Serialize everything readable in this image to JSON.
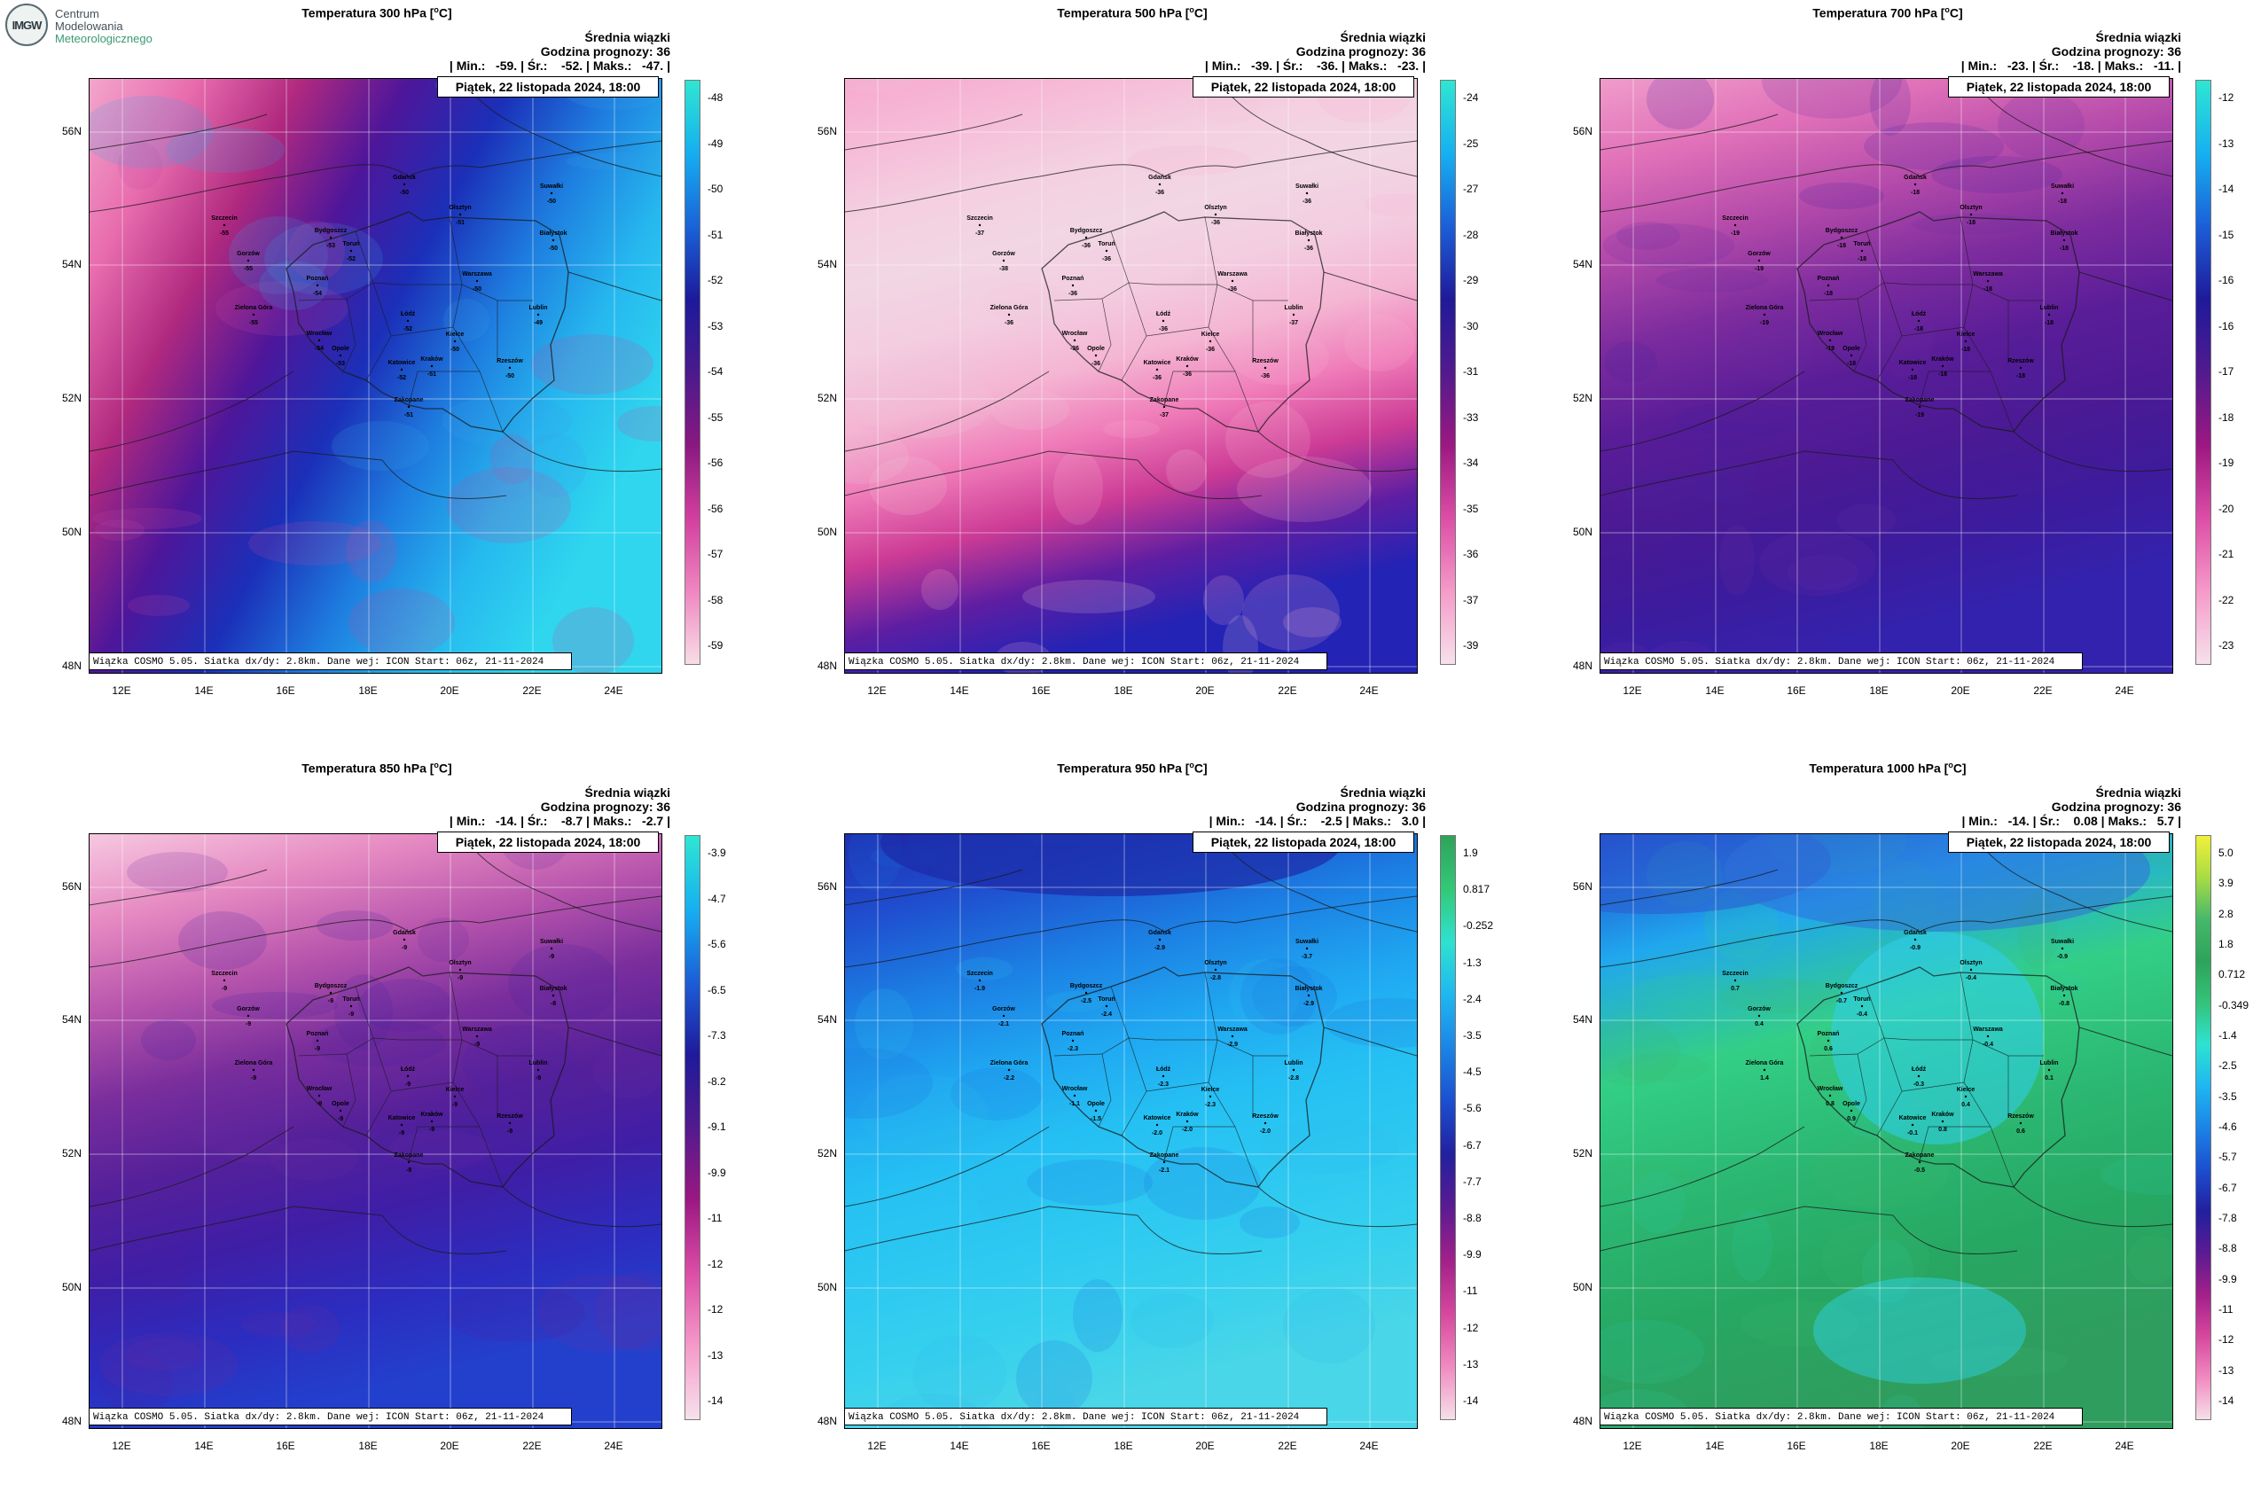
{
  "logo": {
    "line1": "Centrum",
    "line2": "Modelowania",
    "line3": "Meteorologicznego",
    "mark": "IMGW"
  },
  "lat_labels": [
    "56N",
    "54N",
    "52N",
    "50N",
    "48N"
  ],
  "lon_labels": [
    "12E",
    "14E",
    "16E",
    "18E",
    "20E",
    "22E",
    "24E"
  ],
  "common": {
    "header_line1": "Średnia wiązki",
    "header_line2": "Godzina prognozy: 36",
    "date": "Piątek, 22 listopada 2024, 18:00",
    "footer": "Wiązka COSMO 5.05. Siatka dx/dy: 2.8km. Dane wej: ICON Start: 06z, 21-11-2024"
  },
  "cities": [
    {
      "name": "Gdańsk"
    },
    {
      "name": "Olsztyn"
    },
    {
      "name": "Suwałki"
    },
    {
      "name": "Szczecin"
    },
    {
      "name": "Bydgoszcz"
    },
    {
      "name": "Toruń"
    },
    {
      "name": "Białystok"
    },
    {
      "name": "Gorzów"
    },
    {
      "name": "Poznań"
    },
    {
      "name": "Warszawa"
    },
    {
      "name": "Zielona Góra"
    },
    {
      "name": "Łódź"
    },
    {
      "name": "Lublin"
    },
    {
      "name": "Wrocław"
    },
    {
      "name": "Kielce"
    },
    {
      "name": "Opole"
    },
    {
      "name": "Katowice"
    },
    {
      "name": "Kraków"
    },
    {
      "name": "Rzeszów"
    },
    {
      "name": "Zakopane"
    }
  ],
  "panels": [
    {
      "title": "Temperatura 300 hPa [",
      "title_unit": "C]",
      "stats": "| Min.:   -59. | Śr.:    -52. | Maks.:   -47. |",
      "colorbar": [
        "-48",
        "-49",
        "-50",
        "-51",
        "-52",
        "-53",
        "-54",
        "-55",
        "-56",
        "-56",
        "-57",
        "-58",
        "-59"
      ],
      "colors": [
        "#2fe6d2",
        "#15aef0",
        "#1a63d8",
        "#1c1a9a",
        "#4a1a8e",
        "#8a1880",
        "#d23f9e",
        "#ef86c0",
        "#f8dde6"
      ],
      "city_values": [
        "-50",
        "-51",
        "-50",
        "-55",
        "-53",
        "-52",
        "-50",
        "-55",
        "-54",
        "-50",
        "-55",
        "-52",
        "-49",
        "-54",
        "-50",
        "-53",
        "-52",
        "-51",
        "-50",
        "-51"
      ],
      "map": {
        "type": "gradient_diag",
        "stops": [
          "#f3a6cc",
          "#e86cae",
          "#b0297f",
          "#4e169a",
          "#1b2fb8",
          "#1e7ddf",
          "#26b8ef",
          "#2fd6ee"
        ]
      }
    },
    {
      "title": "Temperatura 500 hPa [",
      "title_unit": "C]",
      "stats": "| Min.:   -39. | Śr.:    -36. | Maks.:   -23. |",
      "colorbar": [
        "-24",
        "-25",
        "-27",
        "-28",
        "-29",
        "-30",
        "-31",
        "-33",
        "-34",
        "-35",
        "-36",
        "-37",
        "-39"
      ],
      "colors": [
        "#2fe6d2",
        "#16b0f0",
        "#1c5ed8",
        "#1f1a9a",
        "#521a8e",
        "#9c1882",
        "#dc4ea6",
        "#f59ac9",
        "#f6e1eb"
      ],
      "city_values": [
        "-36",
        "-36",
        "-36",
        "-37",
        "-36",
        "-36",
        "-36",
        "-38",
        "-36",
        "-36",
        "-36",
        "-36",
        "-37",
        "-36",
        "-36",
        "-36",
        "-36",
        "-36",
        "-36",
        "-37"
      ],
      "map": {
        "type": "pale_pink",
        "stops": [
          "#f7a9cf",
          "#f6bbd8",
          "#f4cfe0",
          "#f2d6e3",
          "#f3cde0",
          "#f4b5d3",
          "#ef7ab8",
          "#cc3b95",
          "#5e1ea2",
          "#2323b5"
        ]
      }
    },
    {
      "title": "Temperatura 700 hPa [",
      "title_unit": "C]",
      "stats": "| Min.:   -23. | Śr.:    -18. | Maks.:   -11. |",
      "colorbar": [
        "-12",
        "-13",
        "-14",
        "-15",
        "-16",
        "-16",
        "-17",
        "-18",
        "-19",
        "-20",
        "-21",
        "-22",
        "-23"
      ],
      "colors": [
        "#2fe6d2",
        "#16b0f0",
        "#1c5ed8",
        "#1f1a9a",
        "#521a8e",
        "#9c1882",
        "#dc4ea6",
        "#f59ac9",
        "#f6e1eb"
      ],
      "city_values": [
        "-18",
        "-18",
        "-18",
        "-19",
        "-18",
        "-18",
        "-18",
        "-19",
        "-18",
        "-18",
        "-19",
        "-18",
        "-18",
        "-19",
        "-18",
        "-18",
        "-18",
        "-18",
        "-18",
        "-19"
      ],
      "map": {
        "type": "purple_top",
        "stops": [
          "#f09ccb",
          "#e070b8",
          "#b44aaa",
          "#7d2c9e",
          "#5a1d98",
          "#4b1a94",
          "#3d1b9c",
          "#3322ad"
        ]
      }
    },
    {
      "title": "Temperatura 850 hPa [",
      "title_unit": "C]",
      "stats": "| Min.:   -14. | Śr.:    -8.7 | Maks.:   -2.7 |",
      "colorbar": [
        "-3.9",
        "-4.7",
        "-5.6",
        "-6.5",
        "-7.3",
        "-8.2",
        "-9.1",
        "-9.9",
        "-11",
        "-12",
        "-12",
        "-13",
        "-14"
      ],
      "colors": [
        "#2fe6d2",
        "#16b0f0",
        "#1c5ed8",
        "#1f1a9a",
        "#521a8e",
        "#9c1882",
        "#dc4ea6",
        "#f59ac9",
        "#f6e1eb"
      ],
      "city_values": [
        "-9",
        "-9",
        "-9",
        "-9",
        "-9",
        "-9",
        "-8",
        "-9",
        "-9",
        "-9",
        "-9",
        "-9",
        "-9",
        "-9",
        "-9",
        "-9",
        "-9",
        "-9",
        "-9",
        "-9"
      ],
      "map": {
        "type": "purple_top",
        "stops": [
          "#f6c8e0",
          "#e68ac2",
          "#b855ad",
          "#7a2e9c",
          "#55209a",
          "#3f1ea6",
          "#2c2cbf",
          "#2340cd"
        ]
      }
    },
    {
      "title": "Temperatura 950 hPa [",
      "title_unit": "C]",
      "stats": "| Min.:   -14. | Śr.:    -2.5 | Maks.:   3.0 |",
      "colorbar": [
        "1.9",
        "0.817",
        "-0.252",
        "-1.3",
        "-2.4",
        "-3.5",
        "-4.5",
        "-5.6",
        "-6.7",
        "-7.7",
        "-8.8",
        "-9.9",
        "-11",
        "-12",
        "-13",
        "-14"
      ],
      "colors": [
        "#2ea35a",
        "#33c877",
        "#2ee2d0",
        "#1fb7f0",
        "#1c84e6",
        "#1c4fd0",
        "#22209f",
        "#5a1b92",
        "#a2208a",
        "#d6479e",
        "#f08ac0",
        "#f6dfe9"
      ],
      "city_values": [
        "-2.9",
        "-2.8",
        "-3.7",
        "-1.9",
        "-2.5",
        "-2.4",
        "-2.9",
        "-2.1",
        "-2.3",
        "-2.9",
        "-2.2",
        "-2.3",
        "-2.8",
        "-1.1",
        "-2.3",
        "-1.5",
        "-2.0",
        "-2.0",
        "-2.0",
        "-2.1"
      ],
      "map": {
        "type": "blue",
        "stops": [
          "#1e2fb2",
          "#1f4fcf",
          "#1c7fe3",
          "#1fa6f1",
          "#25c0f3",
          "#2cc8f1",
          "#36d0ee",
          "#48d6e8"
        ]
      }
    },
    {
      "title": "Temperatura 1000 hPa [",
      "title_unit": "C]",
      "stats": "| Min.:   -14. | Śr.:    0.08 | Maks.:   5.7 |",
      "colorbar": [
        "5.0",
        "3.9",
        "2.8",
        "1.8",
        "0.712",
        "-0.349",
        "-1.4",
        "-2.5",
        "-3.5",
        "-4.6",
        "-5.7",
        "-6.7",
        "-7.8",
        "-8.8",
        "-9.9",
        "-11",
        "-12",
        "-13",
        "-14"
      ],
      "colors": [
        "#f1f03a",
        "#a8dc44",
        "#46b86a",
        "#2ea35a",
        "#35c27a",
        "#2ee2d0",
        "#1fb7f0",
        "#1c84e6",
        "#1c4fd0",
        "#22209f",
        "#5a1b92",
        "#a2208a",
        "#d6479e",
        "#f08ac0",
        "#f6dfe9"
      ],
      "city_values": [
        "-0.9",
        "-0.4",
        "-0.9",
        "0.7",
        "-0.7",
        "-0.4",
        "-0.8",
        "0.4",
        "0.6",
        "-0.4",
        "1.4",
        "-0.3",
        "0.1",
        "0.8",
        "0.4",
        "0.9",
        "-0.1",
        "0.8",
        "0.6",
        "-0.5"
      ],
      "map": {
        "type": "green",
        "stops": [
          "#1f40c8",
          "#20a7ee",
          "#33cf86",
          "#2bb872",
          "#26a862",
          "#2f9d5e"
        ]
      }
    }
  ]
}
